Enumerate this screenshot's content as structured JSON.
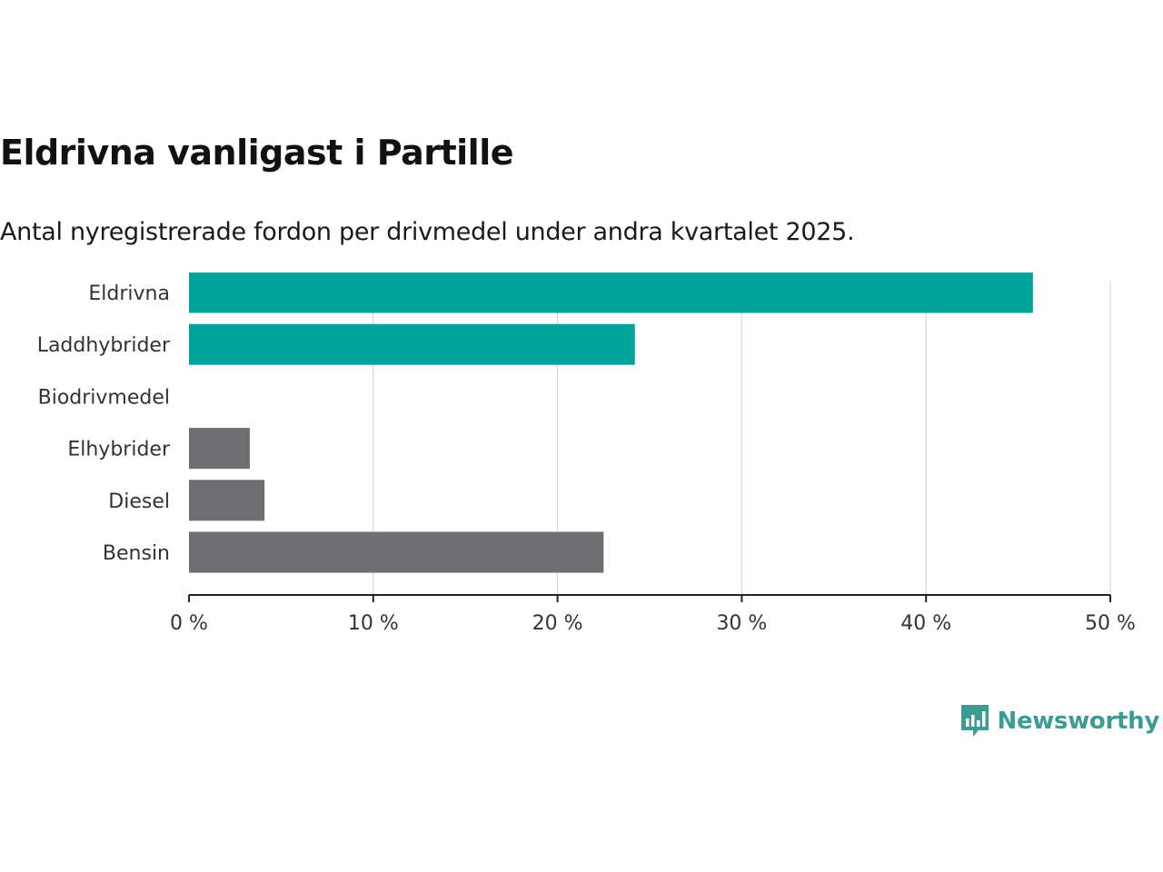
{
  "header": {
    "title": "Eldrivna vanligast i Partille",
    "subtitle": "Antal nyregistrerade fordon per drivmedel under andra kvartalet 2025."
  },
  "brand": {
    "name": "Newsworthy",
    "logo_icon": "newsworthy-chart-bubble-icon",
    "color": "#3c9c93"
  },
  "colors": {
    "highlight": "#00a499",
    "other": "#6e6d72",
    "grid": "#d9d9d9",
    "axis": "#222222"
  },
  "chart_data": {
    "type": "bar",
    "orientation": "horizontal",
    "categories": [
      "Eldrivna",
      "Laddhybrider",
      "Biodrivmedel",
      "Elhybrider",
      "Diesel",
      "Bensin"
    ],
    "values": [
      45.8,
      24.2,
      0,
      3.3,
      4.1,
      22.5
    ],
    "highlighted": [
      true,
      true,
      false,
      false,
      false,
      false
    ],
    "unit": "%",
    "xlim": [
      0,
      50
    ],
    "xticks": [
      0,
      10,
      20,
      30,
      40,
      50
    ],
    "xtick_labels": [
      "0 %",
      "10 %",
      "20 %",
      "30 %",
      "40 %",
      "50 %"
    ],
    "grid": true,
    "legend": "none"
  }
}
